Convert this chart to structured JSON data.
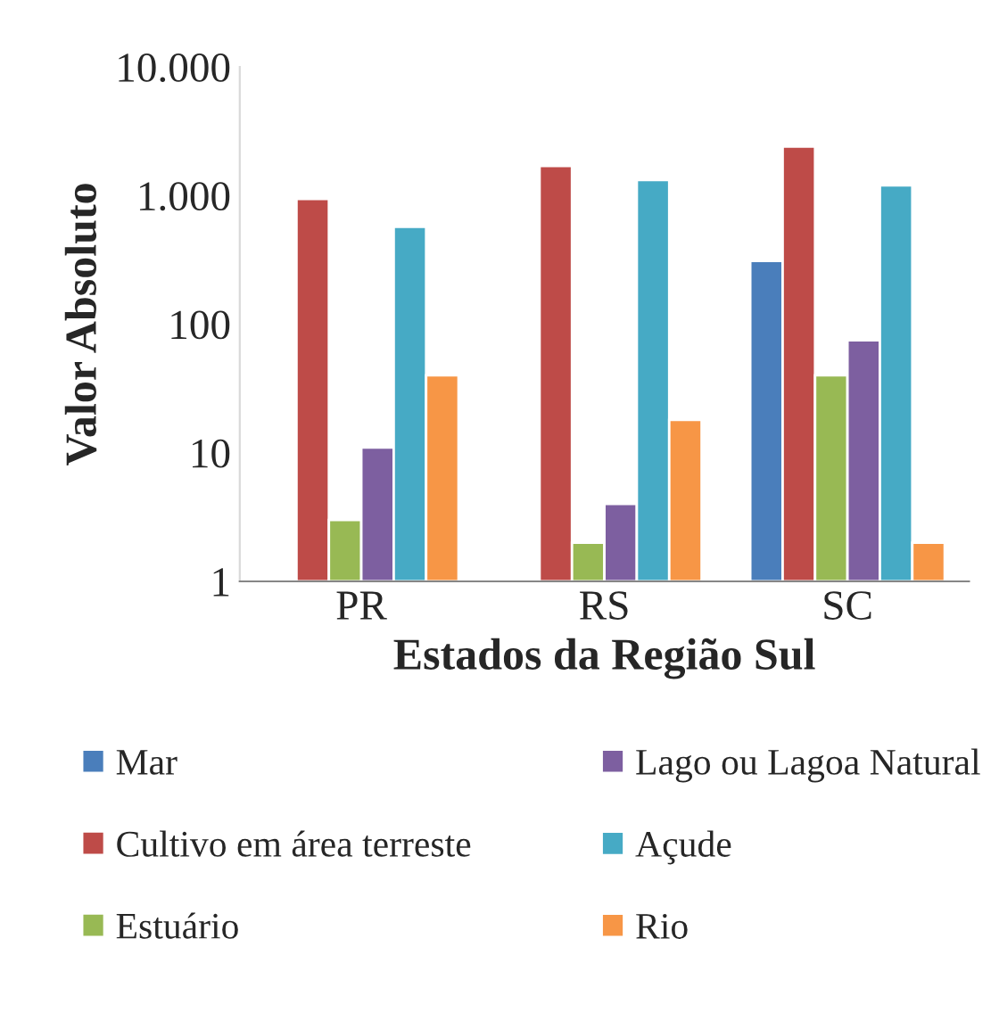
{
  "chart_data": {
    "type": "bar",
    "xlabel": "Estados da Região Sul",
    "ylabel": "Valor Absoluto",
    "categories": [
      "PR",
      "RS",
      "SC"
    ],
    "series": [
      {
        "name": "Mar",
        "color": "#4a7ebb",
        "values": [
          null,
          null,
          310
        ]
      },
      {
        "name": "Cultivo em área terreste",
        "color": "#be4b48",
        "values": [
          940,
          1700,
          2400
        ]
      },
      {
        "name": "Estuário",
        "color": "#98b954",
        "values": [
          3,
          2,
          40
        ]
      },
      {
        "name": "Lago ou Lagoa Natural",
        "color": "#7d5fa0",
        "values": [
          11,
          4,
          75
        ]
      },
      {
        "name": "Açude",
        "color": "#46aac5",
        "values": [
          570,
          1320,
          1200
        ]
      },
      {
        "name": "Rio",
        "color": "#f79646",
        "values": [
          40,
          18,
          2
        ]
      }
    ],
    "log": "y",
    "ylim": [
      1,
      10000
    ],
    "yticks": [
      {
        "value": 1,
        "label": "1"
      },
      {
        "value": 10,
        "label": "10"
      },
      {
        "value": 100,
        "label": "100"
      },
      {
        "value": 1000,
        "label": "1.000"
      },
      {
        "value": 10000,
        "label": "10.000"
      }
    ],
    "legend": "bottom",
    "grid": false
  }
}
